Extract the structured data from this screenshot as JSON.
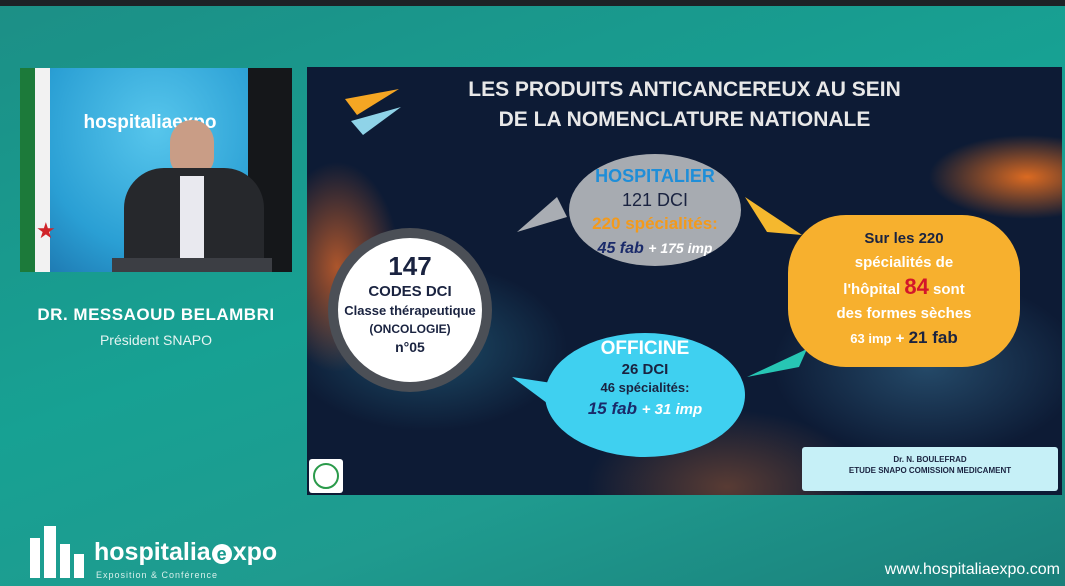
{
  "speaker": {
    "name": "DR. MESSAOUD BELAMBRI",
    "role": "Président SNAPO"
  },
  "stage_logo": "hospitaliaexpo",
  "slide": {
    "title": [
      "LES PRODUITS ANTICANCEREUX AU SEIN",
      "DE LA NOMENCLATURE NATIONALE"
    ],
    "hospitalier": {
      "heading": "HOSPITALIER",
      "dci": "121 DCI",
      "specialites": "220 spécialités:",
      "fab": "45 fab",
      "imp": "+ 175 imp"
    },
    "center": {
      "number": "147",
      "codes": "CODES DCI",
      "classe": "Classe thérapeutique",
      "oncologie": "(ONCOLOGIE)",
      "num": "n°05"
    },
    "officine": {
      "heading": "OFFICINE",
      "dci": "26 DCI",
      "specialites": "46 spécialités:",
      "fab": "15 fab",
      "imp": "+ 31 imp"
    },
    "summary": {
      "line1": "Sur les 220",
      "line2": "spécialités de",
      "line3a": "l'hôpital",
      "line3b": "84",
      "line3c": "sont",
      "line4": "des formes sèches",
      "line5a": "63 imp",
      "line5b": "+",
      "line5c": "21 fab"
    },
    "credit": [
      "Dr. N. BOULEFRAD",
      "ETUDE SNAPO COMISSION MEDICAMENT"
    ]
  },
  "footer": {
    "logo": [
      "hospitalia",
      "e",
      "xpo"
    ],
    "tagline": "Exposition & Conférence",
    "url": "www.hospitaliaexpo.com"
  }
}
